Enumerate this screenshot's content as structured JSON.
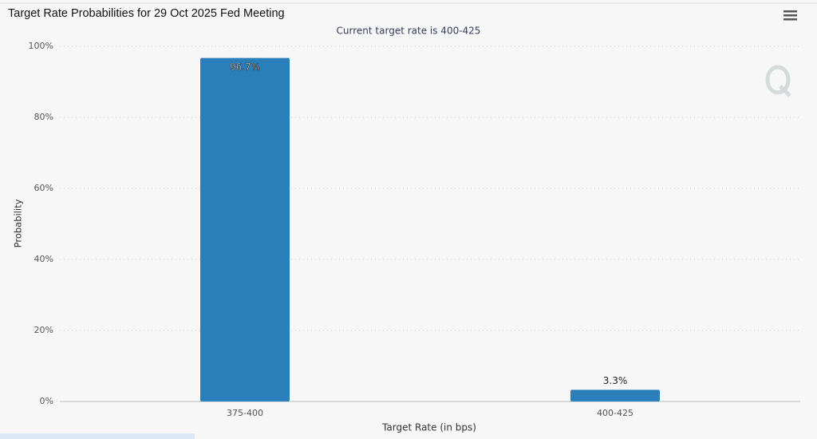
{
  "chart_data": {
    "type": "bar",
    "title": "Target Rate Probabilities for 29 Oct 2025 Fed Meeting",
    "subtitle": "Current target rate is 400-425",
    "x_label": "Target Rate (in bps)",
    "y_label": "Probability",
    "categories": [
      "375-400",
      "400-425"
    ],
    "values": [
      96.7,
      3.3
    ],
    "value_labels": [
      "96.7%",
      "3.3%"
    ],
    "color": "#2a7fba",
    "ylim": [
      0,
      100
    ],
    "yticks": [
      {
        "value": 0,
        "label": "0%"
      },
      {
        "value": 20,
        "label": "20%"
      },
      {
        "value": 40,
        "label": "40%"
      },
      {
        "value": 60,
        "label": "60%"
      },
      {
        "value": 80,
        "label": "80%"
      },
      {
        "value": 100,
        "label": "100%"
      }
    ],
    "grid": true
  }
}
